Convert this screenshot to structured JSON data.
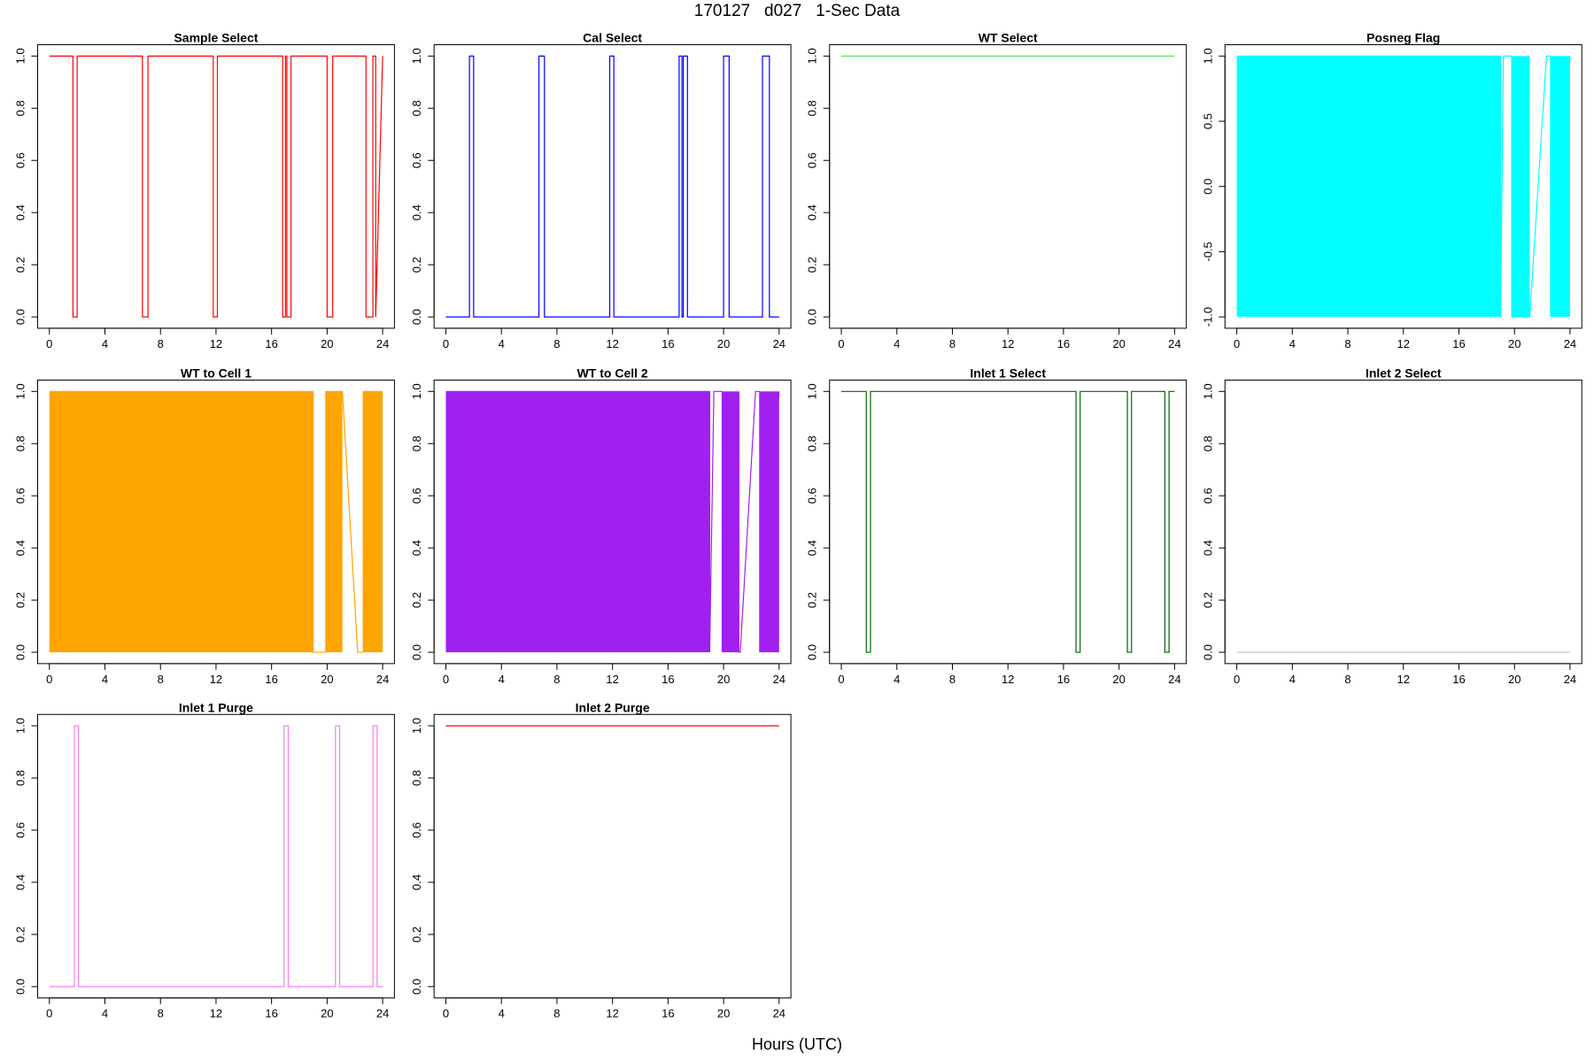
{
  "figure": {
    "title": "170127   d027   1-Sec Data",
    "xlabel": "Hours (UTC)"
  },
  "chart_data": [
    {
      "type": "line",
      "title": "Sample Select",
      "color": "#ff0000",
      "xlim": [
        0,
        24
      ],
      "ylim": [
        0,
        1
      ],
      "xticks": [
        0,
        4,
        8,
        12,
        16,
        20,
        24
      ],
      "yticks": [
        0,
        0.2,
        0.4,
        0.6,
        0.8,
        1
      ],
      "ytick_labels": [
        "0.0",
        "0.2",
        "0.4",
        "0.6",
        "0.8",
        "1.0"
      ],
      "x": [
        0,
        1.7,
        1.7,
        2.0,
        2.0,
        6.7,
        6.7,
        7.1,
        7.1,
        11.8,
        11.8,
        12.1,
        12.1,
        16.8,
        16.8,
        17.0,
        17.0,
        17.1,
        17.1,
        17.4,
        17.4,
        20.0,
        20.0,
        20.4,
        20.4,
        22.8,
        22.8,
        23.3,
        23.3,
        23.5,
        23.5,
        24
      ],
      "y": [
        1,
        1,
        0,
        0,
        1,
        1,
        0,
        0,
        1,
        1,
        0,
        0,
        1,
        1,
        0,
        0,
        1,
        1,
        0,
        0,
        1,
        1,
        0,
        0,
        1,
        1,
        0,
        0,
        1,
        1,
        0,
        1
      ]
    },
    {
      "type": "line",
      "title": "Cal Select",
      "color": "#0000ff",
      "xlim": [
        0,
        24
      ],
      "ylim": [
        0,
        1
      ],
      "xticks": [
        0,
        4,
        8,
        12,
        16,
        20,
        24
      ],
      "yticks": [
        0,
        0.2,
        0.4,
        0.6,
        0.8,
        1
      ],
      "ytick_labels": [
        "0.0",
        "0.2",
        "0.4",
        "0.6",
        "0.8",
        "1.0"
      ],
      "x": [
        0,
        1.7,
        1.7,
        2.0,
        2.0,
        6.7,
        6.7,
        7.1,
        7.1,
        11.8,
        11.8,
        12.1,
        12.1,
        16.8,
        16.8,
        17.0,
        17.0,
        17.1,
        17.1,
        17.4,
        17.4,
        20.0,
        20.0,
        20.4,
        20.4,
        22.8,
        22.8,
        23.3,
        23.3,
        24
      ],
      "y": [
        0,
        0,
        1,
        1,
        0,
        0,
        1,
        1,
        0,
        0,
        1,
        1,
        0,
        0,
        1,
        1,
        0,
        0,
        1,
        1,
        0,
        0,
        1,
        1,
        0,
        0,
        1,
        1,
        0,
        0
      ]
    },
    {
      "type": "line",
      "title": "WT Select",
      "color": "#66dd66",
      "xlim": [
        0,
        24
      ],
      "ylim": [
        0,
        1
      ],
      "xticks": [
        0,
        4,
        8,
        12,
        16,
        20,
        24
      ],
      "yticks": [
        0,
        0.2,
        0.4,
        0.6,
        0.8,
        1
      ],
      "ytick_labels": [
        "0.0",
        "0.2",
        "0.4",
        "0.6",
        "0.8",
        "1.0"
      ],
      "x": [
        0,
        24
      ],
      "y": [
        1,
        1
      ]
    },
    {
      "type": "area",
      "title": "Posneg Flag",
      "color": "#00ffff",
      "xlim": [
        0,
        24
      ],
      "ylim": [
        -1,
        1
      ],
      "xticks": [
        0,
        4,
        8,
        12,
        16,
        20,
        24
      ],
      "yticks": [
        -1,
        -0.5,
        0,
        0.5,
        1
      ],
      "ytick_labels": [
        "-1.0",
        "-0.5",
        "0.0",
        "0.5",
        "1.0"
      ],
      "fill_blocks": [
        [
          0,
          19.0
        ],
        [
          19.8,
          21.1
        ],
        [
          22.6,
          24
        ]
      ],
      "x": [
        0,
        19.0,
        19.0,
        19.2,
        19.8,
        19.8,
        21.1,
        21.1,
        22.3,
        22.6,
        22.6,
        24
      ],
      "y": [
        1,
        1,
        -1,
        1,
        1,
        -1,
        -1,
        -1,
        1,
        1,
        -1,
        1
      ]
    },
    {
      "type": "area",
      "title": "WT to Cell 1",
      "color": "#ffa500",
      "xlim": [
        0,
        24
      ],
      "ylim": [
        0,
        1
      ],
      "xticks": [
        0,
        4,
        8,
        12,
        16,
        20,
        24
      ],
      "yticks": [
        0,
        0.2,
        0.4,
        0.6,
        0.8,
        1
      ],
      "ytick_labels": [
        "0.0",
        "0.2",
        "0.4",
        "0.6",
        "0.8",
        "1.0"
      ],
      "fill_blocks": [
        [
          0,
          19.0
        ],
        [
          19.9,
          21.1
        ],
        [
          22.6,
          24
        ]
      ],
      "x": [
        0,
        19.0,
        19.0,
        19.4,
        19.4,
        19.9,
        19.9,
        21.1,
        22.2,
        22.6,
        22.6,
        24
      ],
      "y": [
        1,
        1,
        0,
        0,
        0,
        0,
        1,
        1,
        0,
        0,
        1,
        1
      ]
    },
    {
      "type": "area",
      "title": "WT to Cell 2",
      "color": "#a020f0",
      "xlim": [
        0,
        24
      ],
      "ylim": [
        0,
        1
      ],
      "xticks": [
        0,
        4,
        8,
        12,
        16,
        20,
        24
      ],
      "yticks": [
        0,
        0.2,
        0.4,
        0.6,
        0.8,
        1
      ],
      "ytick_labels": [
        "0.0",
        "0.2",
        "0.4",
        "0.6",
        "0.8",
        "1.0"
      ],
      "fill_blocks": [
        [
          0,
          19.0
        ],
        [
          19.9,
          21.1
        ],
        [
          22.6,
          24
        ]
      ],
      "x": [
        0,
        19.0,
        19.0,
        19.3,
        19.9,
        19.9,
        21.1,
        21.1,
        21.2,
        22.3,
        22.6,
        22.6,
        24
      ],
      "y": [
        1,
        1,
        0,
        1,
        1,
        0,
        1,
        0,
        0,
        1,
        1,
        0,
        1
      ]
    },
    {
      "type": "line",
      "title": "Inlet 1 Select",
      "color": "#006400",
      "xlim": [
        0,
        24
      ],
      "ylim": [
        0,
        1
      ],
      "xticks": [
        0,
        4,
        8,
        12,
        16,
        20,
        24
      ],
      "yticks": [
        0,
        0.2,
        0.4,
        0.6,
        0.8,
        1
      ],
      "ytick_labels": [
        "0.0",
        "0.2",
        "0.4",
        "0.6",
        "0.8",
        "1.0"
      ],
      "x": [
        0,
        1.8,
        1.8,
        2.1,
        2.1,
        16.9,
        16.9,
        17.2,
        17.2,
        20.6,
        20.6,
        20.9,
        20.9,
        23.3,
        23.3,
        23.6,
        23.6,
        24
      ],
      "y": [
        1,
        1,
        0,
        0,
        1,
        1,
        0,
        0,
        1,
        1,
        0,
        0,
        1,
        1,
        0,
        0,
        1,
        1
      ]
    },
    {
      "type": "line",
      "title": "Inlet 2 Select",
      "color": "#bebebe",
      "xlim": [
        0,
        24
      ],
      "ylim": [
        0,
        1
      ],
      "xticks": [
        0,
        4,
        8,
        12,
        16,
        20,
        24
      ],
      "yticks": [
        0,
        0.2,
        0.4,
        0.6,
        0.8,
        1
      ],
      "ytick_labels": [
        "0.0",
        "0.2",
        "0.4",
        "0.6",
        "0.8",
        "1.0"
      ],
      "x": [
        0,
        24
      ],
      "y": [
        0,
        0
      ]
    },
    {
      "type": "line",
      "title": "Inlet 1 Purge",
      "color": "#ee82ee",
      "xlim": [
        0,
        24
      ],
      "ylim": [
        0,
        1
      ],
      "xticks": [
        0,
        4,
        8,
        12,
        16,
        20,
        24
      ],
      "yticks": [
        0,
        0.2,
        0.4,
        0.6,
        0.8,
        1
      ],
      "ytick_labels": [
        "0.0",
        "0.2",
        "0.4",
        "0.6",
        "0.8",
        "1.0"
      ],
      "x": [
        0,
        1.8,
        1.8,
        2.1,
        2.1,
        16.9,
        16.9,
        17.2,
        17.2,
        20.6,
        20.6,
        20.9,
        20.9,
        23.3,
        23.3,
        23.6,
        23.6,
        24
      ],
      "y": [
        0,
        0,
        1,
        1,
        0,
        0,
        1,
        1,
        0,
        0,
        1,
        1,
        0,
        0,
        1,
        1,
        0,
        0
      ]
    },
    {
      "type": "line",
      "title": "Inlet 2 Purge",
      "color": "#ff0000",
      "xlim": [
        0,
        24
      ],
      "ylim": [
        0,
        1
      ],
      "xticks": [
        0,
        4,
        8,
        12,
        16,
        20,
        24
      ],
      "yticks": [
        0,
        0.2,
        0.4,
        0.6,
        0.8,
        1
      ],
      "ytick_labels": [
        "0.0",
        "0.2",
        "0.4",
        "0.6",
        "0.8",
        "1.0"
      ],
      "x": [
        0,
        24
      ],
      "y": [
        1,
        1
      ]
    }
  ]
}
